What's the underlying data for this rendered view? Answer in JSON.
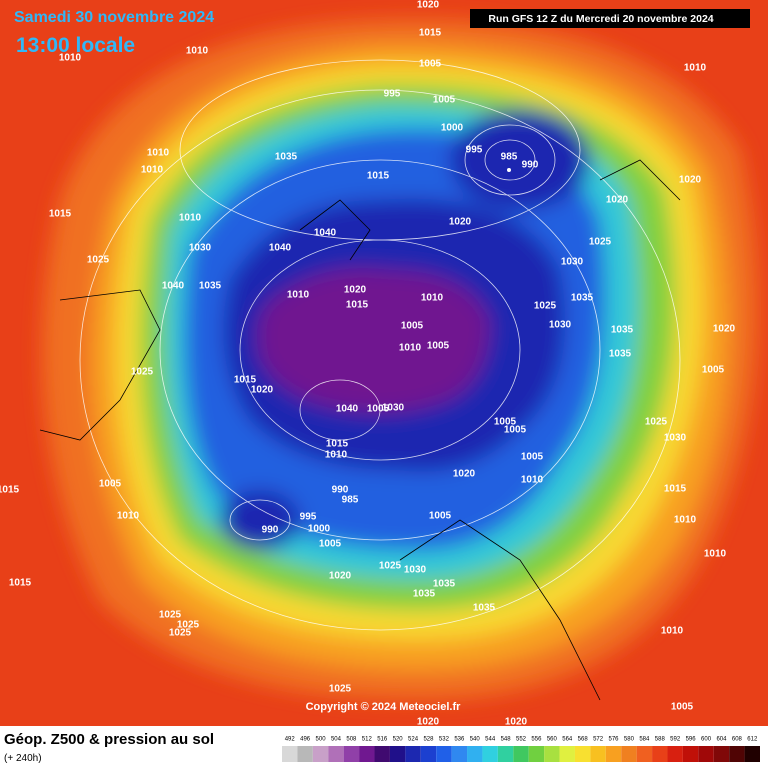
{
  "header": {
    "date": "Samedi 30 novembre 2024",
    "time": "13:00 locale",
    "run": "Run GFS 12 Z du Mercredi 20 novembre 2024"
  },
  "copyright": "Copyright © 2024 Meteociel.fr",
  "footer": {
    "title": "Géop. Z500 & pression au sol",
    "lead": "(+ 240h)"
  },
  "isobar_labels": [
    1020,
    1015,
    1010,
    1010,
    1005,
    1010,
    995,
    1005,
    1000,
    995,
    985,
    990,
    1035,
    1015,
    1010,
    1010,
    1020,
    1015,
    1010,
    1020,
    1020,
    1030,
    1040,
    1040,
    1025,
    1025,
    1030,
    1040,
    1035,
    1010,
    1020,
    1015,
    1010,
    1035,
    1025,
    1005,
    1030,
    1035,
    1020,
    1010,
    1005,
    1035,
    1005,
    1025,
    1015,
    1020,
    1040,
    1005,
    1030,
    1005,
    1025,
    1005,
    1030,
    1015,
    1010,
    1005,
    1020,
    1010,
    1005,
    1015,
    990,
    1015,
    985,
    995,
    1005,
    1010,
    1010,
    1000,
    990,
    1005,
    1010,
    1025,
    1030,
    1020,
    1015,
    1035,
    1035,
    1035,
    1025,
    1025,
    1025,
    1010,
    1025,
    1005,
    1020,
    1020
  ],
  "colorbar": {
    "ticks": [
      492,
      496,
      500,
      504,
      508,
      512,
      516,
      520,
      524,
      528,
      532,
      536,
      540,
      544,
      548,
      552,
      556,
      560,
      564,
      568,
      572,
      576,
      580,
      584,
      588,
      592,
      596,
      600,
      604,
      608,
      612
    ],
    "colors": [
      "#d8d8d8",
      "#b8b8b8",
      "#c8a0c8",
      "#b070b8",
      "#9040a8",
      "#701890",
      "#400a70",
      "#20108a",
      "#1c28b0",
      "#1c40d0",
      "#2060e8",
      "#3088f0",
      "#30b0f0",
      "#30d0e0",
      "#30d0a0",
      "#40c860",
      "#70d040",
      "#a8e040",
      "#e0f040",
      "#f8e030",
      "#f8c020",
      "#f8a020",
      "#f08020",
      "#f06020",
      "#e84018",
      "#d82010",
      "#c01008",
      "#a00808",
      "#800808",
      "#500404",
      "#200000"
    ]
  }
}
